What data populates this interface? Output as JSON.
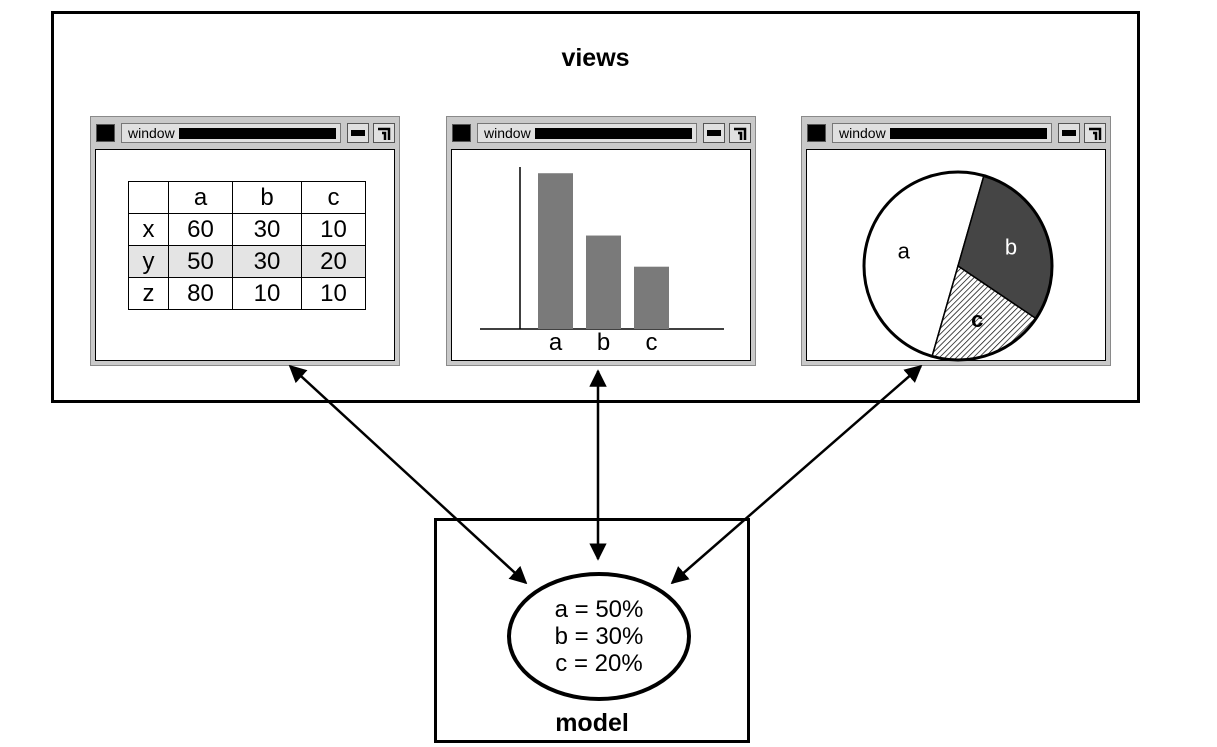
{
  "views": {
    "title": "views",
    "windows": [
      {
        "title": "window",
        "kind": "table"
      },
      {
        "title": "window",
        "kind": "bar-chart"
      },
      {
        "title": "window",
        "kind": "pie-chart"
      }
    ]
  },
  "table": {
    "columns": [
      "",
      "a",
      "b",
      "c"
    ],
    "rows": [
      {
        "label": "x",
        "values": [
          "60",
          "30",
          "10"
        ],
        "highlighted": false
      },
      {
        "label": "y",
        "values": [
          "50",
          "30",
          "20"
        ],
        "highlighted": true
      },
      {
        "label": "z",
        "values": [
          "80",
          "10",
          "10"
        ],
        "highlighted": false
      }
    ]
  },
  "chart_data": [
    {
      "type": "bar",
      "categories": [
        "a",
        "b",
        "c"
      ],
      "values": [
        50,
        30,
        20
      ],
      "title": "",
      "xlabel": "",
      "ylabel": "",
      "ylim": [
        0,
        52
      ],
      "colors": {
        "bar": "#7a7a7a"
      }
    },
    {
      "type": "pie",
      "categories": [
        "a",
        "b",
        "c"
      ],
      "values": [
        50,
        30,
        20
      ],
      "slice_labels": [
        "a",
        "b",
        "c"
      ],
      "colors": {
        "a": "#ffffff",
        "b": "#454545",
        "c": "hatched"
      }
    }
  ],
  "model": {
    "title": "model",
    "lines": [
      "a = 50%",
      "b = 30%",
      "c = 20%"
    ]
  }
}
